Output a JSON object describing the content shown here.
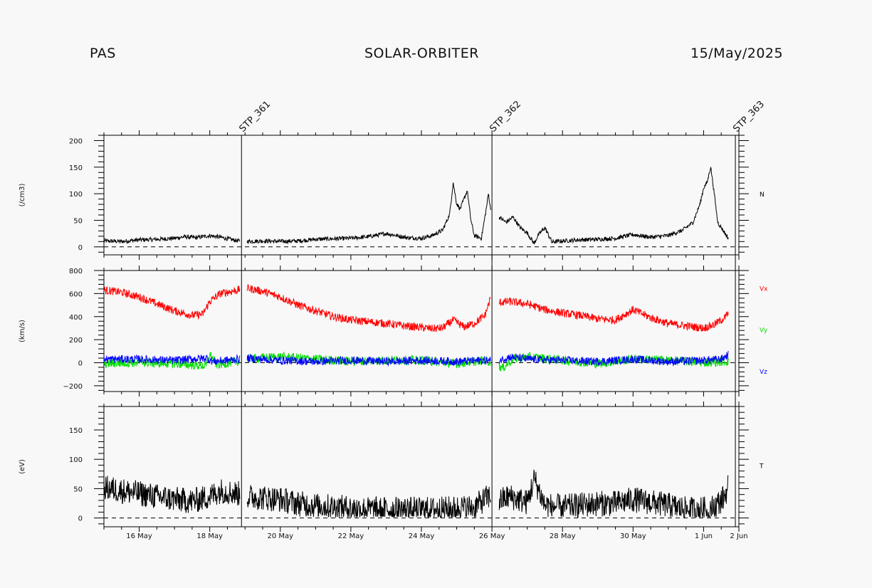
{
  "header": {
    "instrument": "PAS",
    "mission": "SOLAR-ORBITER",
    "date": "15/May/2025"
  },
  "colors": {
    "background": "#f8f8f8",
    "axis": "#000000",
    "vx": "#ff0000",
    "vy": "#00dd00",
    "vz": "#0000ff",
    "black_series": "#000000"
  },
  "markers": [
    {
      "label": "STP_361",
      "day": 18.9
    },
    {
      "label": "STP_362",
      "day": 26.0
    },
    {
      "label": "STP_363",
      "day": 32.9
    }
  ],
  "chart_data": [
    {
      "type": "line",
      "ylabel": "(/cm3)",
      "ylim": [
        -15,
        210
      ],
      "yticks": [
        0,
        50,
        100,
        150,
        200
      ],
      "ytick_labels": [
        "0",
        "50",
        "100",
        "150",
        "200"
      ],
      "zero_line": true,
      "series": [
        {
          "name": "N",
          "color": "#000000",
          "x": [
            15.0,
            15.5,
            16.0,
            16.5,
            17.0,
            17.3,
            17.6,
            18.0,
            18.3,
            18.8,
            19.0,
            19.5,
            20.0,
            20.5,
            21.0,
            21.5,
            22.0,
            22.5,
            23.0,
            23.3,
            23.6,
            24.0,
            24.3,
            24.6,
            24.8,
            24.9,
            25.0,
            25.1,
            25.3,
            25.4,
            25.5,
            25.7,
            25.85,
            25.9,
            26.0,
            26.2,
            26.4,
            26.6,
            26.8,
            27.0,
            27.2,
            27.3,
            27.5,
            27.7,
            28.0,
            28.5,
            29.0,
            29.5,
            30.0,
            30.5,
            31.0,
            31.4,
            31.7,
            31.9,
            32.0,
            32.1,
            32.2,
            32.3,
            32.4,
            32.5,
            32.7
          ],
          "y": [
            10,
            9,
            12,
            13,
            15,
            18,
            16,
            20,
            17,
            10,
            9,
            10,
            9,
            10,
            13,
            14,
            15,
            18,
            24,
            20,
            16,
            15,
            20,
            30,
            60,
            120,
            80,
            70,
            105,
            50,
            20,
            15,
            75,
            100,
            50,
            55,
            45,
            55,
            35,
            25,
            5,
            20,
            35,
            8,
            10,
            12,
            13,
            15,
            22,
            17,
            20,
            30,
            45,
            80,
            110,
            120,
            150,
            100,
            45,
            35,
            15
          ],
          "noise": 4
        }
      ],
      "series_label": [
        {
          "text": "N",
          "color": "#000000",
          "value": 100
        }
      ]
    },
    {
      "type": "line",
      "ylabel": "(km/s)",
      "ylim": [
        -250,
        800
      ],
      "yticks": [
        -200,
        0,
        200,
        400,
        600,
        800
      ],
      "ytick_labels": [
        "−200",
        "0",
        "200",
        "400",
        "600",
        "800"
      ],
      "zero_line": true,
      "series": [
        {
          "name": "Vx",
          "color": "#ff0000",
          "x": [
            15.0,
            15.5,
            16.0,
            16.5,
            17.0,
            17.5,
            17.8,
            18.0,
            18.3,
            18.8,
            19.0,
            19.5,
            20.0,
            20.5,
            21.0,
            21.5,
            22.0,
            22.5,
            23.0,
            23.5,
            24.0,
            24.3,
            24.6,
            24.9,
            25.2,
            25.5,
            25.8,
            25.95,
            26.1,
            26.5,
            27.0,
            27.5,
            28.0,
            28.5,
            29.0,
            29.5,
            30.0,
            30.5,
            31.0,
            31.5,
            32.0,
            32.3,
            32.6,
            32.7
          ],
          "y": [
            620,
            600,
            560,
            500,
            440,
            400,
            410,
            520,
            590,
            620,
            640,
            610,
            560,
            490,
            440,
            390,
            360,
            345,
            330,
            310,
            295,
            285,
            290,
            360,
            300,
            330,
            400,
            540,
            510,
            520,
            500,
            450,
            420,
            400,
            370,
            360,
            450,
            380,
            330,
            310,
            290,
            320,
            380,
            420
          ],
          "noise": 35
        },
        {
          "name": "Vy",
          "color": "#00dd00",
          "x": [
            15.0,
            16.0,
            17.0,
            17.9,
            18.0,
            18.2,
            18.8,
            19.0,
            20.0,
            21.0,
            22.0,
            23.0,
            24.0,
            25.0,
            25.8,
            26.1,
            26.3,
            26.6,
            27.0,
            28.0,
            29.0,
            30.0,
            31.0,
            32.0,
            32.7
          ],
          "y": [
            -20,
            -10,
            -20,
            -40,
            60,
            -30,
            0,
            20,
            40,
            20,
            0,
            10,
            10,
            -20,
            10,
            -20,
            -60,
            20,
            40,
            10,
            -20,
            20,
            10,
            -10,
            0
          ],
          "noise": 40
        },
        {
          "name": "Vz",
          "color": "#0000ff",
          "x": [
            15.0,
            16.0,
            17.0,
            17.9,
            18.1,
            18.8,
            19.0,
            20.0,
            21.0,
            22.0,
            23.0,
            24.0,
            25.0,
            25.8,
            26.1,
            26.5,
            27.0,
            28.0,
            29.0,
            30.0,
            31.0,
            32.0,
            32.5,
            32.7
          ],
          "y": [
            20,
            20,
            10,
            30,
            0,
            20,
            30,
            10,
            0,
            10,
            0,
            10,
            0,
            10,
            0,
            40,
            20,
            10,
            0,
            20,
            0,
            10,
            20,
            60
          ],
          "noise": 35
        }
      ],
      "series_label": [
        {
          "text": "Vx",
          "color": "#ff0000",
          "value": 650
        },
        {
          "text": "Vy",
          "color": "#00dd00",
          "value": 290
        },
        {
          "text": "Vz",
          "color": "#0000ff",
          "value": -70
        }
      ]
    },
    {
      "type": "line",
      "ylabel": "(eV)",
      "ylim": [
        -15,
        190
      ],
      "yticks": [
        0,
        50,
        100,
        150
      ],
      "ytick_labels": [
        "0",
        "50",
        "100",
        "150"
      ],
      "zero_line": true,
      "series": [
        {
          "name": "T",
          "color": "#000000",
          "x": [
            15.0,
            15.5,
            16.0,
            16.5,
            17.0,
            17.5,
            18.0,
            18.3,
            18.8,
            19.0,
            19.5,
            20.0,
            20.5,
            21.0,
            21.5,
            22.0,
            22.5,
            23.0,
            23.5,
            24.0,
            24.5,
            25.0,
            25.5,
            25.9,
            26.0,
            26.1,
            26.5,
            27.0,
            27.2,
            27.5,
            28.0,
            28.5,
            29.0,
            29.5,
            30.0,
            30.5,
            31.0,
            31.5,
            32.0,
            32.3,
            32.6,
            32.7
          ],
          "y": [
            45,
            40,
            35,
            30,
            25,
            22,
            30,
            40,
            35,
            30,
            28,
            25,
            18,
            15,
            12,
            10,
            8,
            8,
            8,
            8,
            8,
            10,
            12,
            30,
            25,
            20,
            30,
            20,
            60,
            15,
            12,
            15,
            18,
            18,
            25,
            20,
            15,
            8,
            8,
            12,
            30,
            50
          ],
          "noise": 22
        }
      ],
      "series_label": [
        {
          "text": "T",
          "color": "#000000",
          "value": 90
        }
      ]
    }
  ],
  "xaxis": {
    "day_start": 15.0,
    "day_end": 33.0,
    "major_ticks": [
      16,
      18,
      20,
      22,
      24,
      26,
      28,
      30,
      32,
      33
    ],
    "major_labels": [
      "16 May",
      "18 May",
      "20 May",
      "22 May",
      "24 May",
      "26 May",
      "28 May",
      "30 May",
      "1 Jun",
      "2 Jun"
    ],
    "gaps": [
      [
        18.85,
        19.05
      ],
      [
        25.97,
        26.2
      ],
      [
        32.72,
        33.0
      ]
    ]
  }
}
